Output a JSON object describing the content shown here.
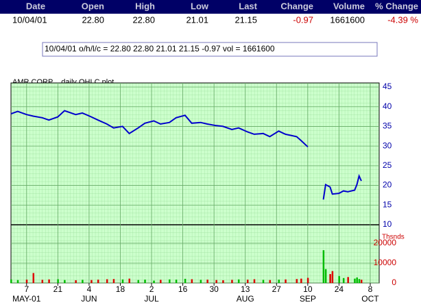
{
  "quote": {
    "headers": [
      "Date",
      "Open",
      "High",
      "Low",
      "Last",
      "Change",
      "Volume",
      "% Change"
    ],
    "row": [
      "10/04/01",
      "22.80",
      "22.80",
      "21.01",
      "21.15",
      "-0.97",
      "1661600",
      "-4.39 %"
    ]
  },
  "info_box": "10/04/01 o/h/l/c = 22.80 22.80 21.01 21.15 -0.97 vol = 1661600",
  "chart_data": {
    "type": "line",
    "title": "AMR CORP .. daily OHLC plot",
    "x": [
      "2001-04-30",
      "2001-05-03",
      "2001-05-07",
      "2001-05-10",
      "2001-05-14",
      "2001-05-17",
      "2001-05-21",
      "2001-05-24",
      "2001-05-29",
      "2001-06-01",
      "2001-06-05",
      "2001-06-08",
      "2001-06-12",
      "2001-06-15",
      "2001-06-19",
      "2001-06-22",
      "2001-06-26",
      "2001-06-29",
      "2001-07-03",
      "2001-07-06",
      "2001-07-10",
      "2001-07-13",
      "2001-07-17",
      "2001-07-20",
      "2001-07-24",
      "2001-07-27",
      "2001-07-31",
      "2001-08-03",
      "2001-08-07",
      "2001-08-10",
      "2001-08-14",
      "2001-08-17",
      "2001-08-21",
      "2001-08-24",
      "2001-08-28",
      "2001-08-31",
      "2001-09-05",
      "2001-09-07",
      "2001-09-10",
      "2001-09-14",
      "2001-09-17",
      "2001-09-18",
      "2001-09-20",
      "2001-09-21",
      "2001-09-24",
      "2001-09-26",
      "2001-09-28",
      "2001-10-01",
      "2001-10-02",
      "2001-10-03",
      "2001-10-04"
    ],
    "series": [
      {
        "name": "AMR CORP",
        "color": "#0000cc",
        "values": [
          38.2,
          38.8,
          38.0,
          37.6,
          37.2,
          36.6,
          37.4,
          39.0,
          38.0,
          38.4,
          37.4,
          36.6,
          35.6,
          34.6,
          35.0,
          33.2,
          34.6,
          35.8,
          36.4,
          35.6,
          36.0,
          37.2,
          37.8,
          35.8,
          36.0,
          35.6,
          35.2,
          35.0,
          34.2,
          34.6,
          33.6,
          33.0,
          33.2,
          32.4,
          33.8,
          33.0,
          32.4,
          31.4,
          29.8,
          null,
          16.4,
          20.2,
          19.6,
          17.8,
          18.0,
          18.6,
          18.4,
          18.8,
          20.2,
          22.4,
          21.15
        ]
      }
    ],
    "xlim": [
      "2001-04-30",
      "2001-10-12"
    ],
    "xticks": [
      {
        "value": "2001-05-07",
        "label": "7"
      },
      {
        "value": "2001-05-21",
        "label": "21"
      },
      {
        "value": "2001-06-04",
        "label": "4"
      },
      {
        "value": "2001-06-18",
        "label": "18"
      },
      {
        "value": "2001-07-02",
        "label": "2"
      },
      {
        "value": "2001-07-16",
        "label": "16"
      },
      {
        "value": "2001-07-30",
        "label": "30"
      },
      {
        "value": "2001-08-13",
        "label": "13"
      },
      {
        "value": "2001-08-27",
        "label": "27"
      },
      {
        "value": "2001-09-10",
        "label": "10"
      },
      {
        "value": "2001-09-24",
        "label": "24"
      },
      {
        "value": "2001-10-08",
        "label": "8"
      }
    ],
    "month_labels": [
      {
        "value": "2001-05-07",
        "label": "MAY-01"
      },
      {
        "value": "2001-06-04",
        "label": "JUN"
      },
      {
        "value": "2001-07-02",
        "label": "JUL"
      },
      {
        "value": "2001-08-13",
        "label": "AUG"
      },
      {
        "value": "2001-09-10",
        "label": "SEP"
      },
      {
        "value": "2001-10-08",
        "label": "OCT"
      }
    ],
    "ylim": [
      10,
      45
    ],
    "yticks": [
      10,
      15,
      20,
      25,
      30,
      35,
      40,
      45
    ],
    "volume": {
      "label": "Thsnds",
      "up_color": "#00bb00",
      "down_color": "#dd0000",
      "values": [
        1800,
        1500,
        1700,
        5000,
        1600,
        1800,
        1900,
        1500,
        1400,
        1600,
        1500,
        1700,
        1900,
        2000,
        1800,
        2200,
        1500,
        1700,
        1200,
        1600,
        1800,
        1700,
        2100,
        1900,
        1600,
        1700,
        1500,
        1400,
        1600,
        1800,
        1700,
        1900,
        1600,
        1500,
        1700,
        1800,
        2000,
        2200,
        2600,
        null,
        16500,
        7000,
        4500,
        6000,
        3500,
        2500,
        3000,
        2200,
        2800,
        2000,
        1661.6
      ],
      "ylim": [
        0,
        28600
      ],
      "yticks": [
        0,
        10000,
        20000
      ]
    }
  }
}
